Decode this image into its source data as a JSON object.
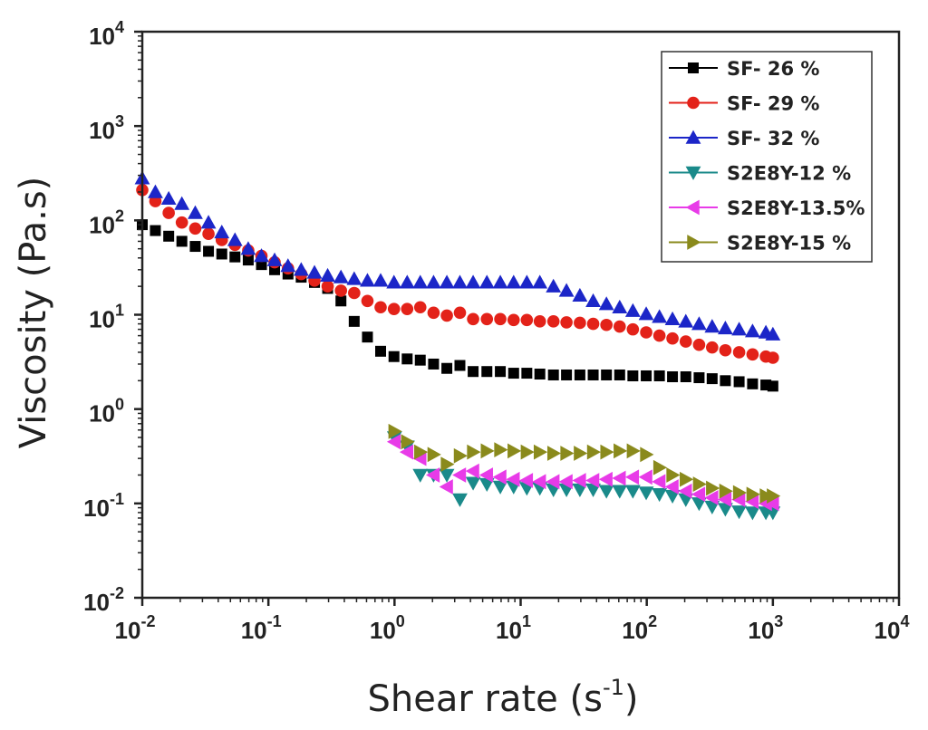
{
  "chart_data": {
    "type": "scatter",
    "title": "",
    "xlabel": "Shear  rate (s",
    "xlabel_sup": "-1",
    "xlabel_end": ")",
    "ylabel": "Viscosity (Pa.s)",
    "xscale": "log",
    "yscale": "log",
    "xlim": [
      0.01,
      10000
    ],
    "ylim": [
      0.01,
      10000
    ],
    "x_ticks": [
      {
        "value": 0.01,
        "base": "10",
        "exp": "-2"
      },
      {
        "value": 0.1,
        "base": "10",
        "exp": "-1"
      },
      {
        "value": 1,
        "base": "10",
        "exp": "0"
      },
      {
        "value": 10,
        "base": "10",
        "exp": "1"
      },
      {
        "value": 100,
        "base": "10",
        "exp": "2"
      },
      {
        "value": 1000,
        "base": "10",
        "exp": "3"
      },
      {
        "value": 10000,
        "base": "10",
        "exp": "4"
      }
    ],
    "y_ticks": [
      {
        "value": 0.01,
        "base": "10",
        "exp": "-2"
      },
      {
        "value": 0.1,
        "base": "10",
        "exp": "-1"
      },
      {
        "value": 1,
        "base": "10",
        "exp": "0"
      },
      {
        "value": 10,
        "base": "10",
        "exp": "1"
      },
      {
        "value": 100,
        "base": "10",
        "exp": "2"
      },
      {
        "value": 1000,
        "base": "10",
        "exp": "3"
      },
      {
        "value": 10000,
        "base": "10",
        "exp": "4"
      }
    ],
    "legend_position": "top-right",
    "series": [
      {
        "name": "SF- 26 %",
        "marker": "square",
        "color": "#000000",
        "points": [
          [
            0.01,
            90
          ],
          [
            0.0127,
            78
          ],
          [
            0.0162,
            68
          ],
          [
            0.0206,
            60
          ],
          [
            0.0263,
            53
          ],
          [
            0.0335,
            47
          ],
          [
            0.0427,
            44
          ],
          [
            0.0543,
            41
          ],
          [
            0.0692,
            38
          ],
          [
            0.0881,
            34
          ],
          [
            0.112,
            30
          ],
          [
            0.143,
            27
          ],
          [
            0.182,
            25
          ],
          [
            0.232,
            22
          ],
          [
            0.295,
            19
          ],
          [
            0.376,
            14
          ],
          [
            0.479,
            8.5
          ],
          [
            0.61,
            5.8
          ],
          [
            0.776,
            4.1
          ],
          [
            0.99,
            3.6
          ],
          [
            1.26,
            3.4
          ],
          [
            1.6,
            3.3
          ],
          [
            2.04,
            3.0
          ],
          [
            2.6,
            2.7
          ],
          [
            3.3,
            2.9
          ],
          [
            4.2,
            2.5
          ],
          [
            5.4,
            2.5
          ],
          [
            6.9,
            2.5
          ],
          [
            8.8,
            2.4
          ],
          [
            11.2,
            2.4
          ],
          [
            14.2,
            2.35
          ],
          [
            18.2,
            2.3
          ],
          [
            23.1,
            2.3
          ],
          [
            29.5,
            2.3
          ],
          [
            37.6,
            2.3
          ],
          [
            47.9,
            2.3
          ],
          [
            61,
            2.3
          ],
          [
            77.6,
            2.25
          ],
          [
            99,
            2.25
          ],
          [
            126,
            2.25
          ],
          [
            160,
            2.2
          ],
          [
            204,
            2.2
          ],
          [
            260,
            2.15
          ],
          [
            330,
            2.1
          ],
          [
            420,
            2.0
          ],
          [
            540,
            1.95
          ],
          [
            690,
            1.85
          ],
          [
            880,
            1.8
          ],
          [
            1000,
            1.75
          ]
        ]
      },
      {
        "name": "SF- 29 %",
        "marker": "circle",
        "color": "#e32219",
        "points": [
          [
            0.01,
            210
          ],
          [
            0.0127,
            160
          ],
          [
            0.0162,
            120
          ],
          [
            0.0206,
            95
          ],
          [
            0.0263,
            82
          ],
          [
            0.0335,
            72
          ],
          [
            0.0427,
            62
          ],
          [
            0.0543,
            55
          ],
          [
            0.0692,
            48
          ],
          [
            0.0881,
            42
          ],
          [
            0.112,
            36
          ],
          [
            0.143,
            31
          ],
          [
            0.182,
            27
          ],
          [
            0.232,
            23
          ],
          [
            0.295,
            20
          ],
          [
            0.376,
            18
          ],
          [
            0.479,
            17
          ],
          [
            0.61,
            14
          ],
          [
            0.776,
            12
          ],
          [
            0.99,
            11.5
          ],
          [
            1.26,
            11.5
          ],
          [
            1.6,
            12
          ],
          [
            2.04,
            10.5
          ],
          [
            2.6,
            9.8
          ],
          [
            3.3,
            10.5
          ],
          [
            4.2,
            9.0
          ],
          [
            5.4,
            9.0
          ],
          [
            6.9,
            9.0
          ],
          [
            8.8,
            8.8
          ],
          [
            11.2,
            8.8
          ],
          [
            14.2,
            8.5
          ],
          [
            18.2,
            8.5
          ],
          [
            23.1,
            8.3
          ],
          [
            29.5,
            8.2
          ],
          [
            37.6,
            8.0
          ],
          [
            47.9,
            7.8
          ],
          [
            61,
            7.5
          ],
          [
            77.6,
            7.0
          ],
          [
            99,
            6.5
          ],
          [
            126,
            6.0
          ],
          [
            160,
            5.6
          ],
          [
            204,
            5.2
          ],
          [
            260,
            4.8
          ],
          [
            330,
            4.5
          ],
          [
            420,
            4.2
          ],
          [
            540,
            4.0
          ],
          [
            690,
            3.8
          ],
          [
            880,
            3.6
          ],
          [
            1000,
            3.5
          ]
        ]
      },
      {
        "name": "SF- 32 %",
        "marker": "triangle-up",
        "color": "#1c26c8",
        "points": [
          [
            0.01,
            280
          ],
          [
            0.0127,
            200
          ],
          [
            0.0162,
            170
          ],
          [
            0.0206,
            150
          ],
          [
            0.0263,
            120
          ],
          [
            0.0335,
            95
          ],
          [
            0.0427,
            75
          ],
          [
            0.0543,
            62
          ],
          [
            0.0692,
            50
          ],
          [
            0.0881,
            42
          ],
          [
            0.112,
            38
          ],
          [
            0.143,
            33
          ],
          [
            0.182,
            30
          ],
          [
            0.232,
            28
          ],
          [
            0.295,
            26
          ],
          [
            0.376,
            25
          ],
          [
            0.479,
            24
          ],
          [
            0.61,
            23
          ],
          [
            0.776,
            23
          ],
          [
            0.99,
            22
          ],
          [
            1.26,
            22
          ],
          [
            1.6,
            22
          ],
          [
            2.04,
            22
          ],
          [
            2.6,
            22
          ],
          [
            3.3,
            22
          ],
          [
            4.2,
            22
          ],
          [
            5.4,
            22
          ],
          [
            6.9,
            22
          ],
          [
            8.8,
            22
          ],
          [
            11.2,
            22
          ],
          [
            14.2,
            22
          ],
          [
            18.2,
            20
          ],
          [
            23.1,
            18
          ],
          [
            29.5,
            16
          ],
          [
            37.6,
            14
          ],
          [
            47.9,
            13
          ],
          [
            61,
            12
          ],
          [
            77.6,
            11
          ],
          [
            99,
            10.2
          ],
          [
            126,
            9.5
          ],
          [
            160,
            9.0
          ],
          [
            204,
            8.5
          ],
          [
            260,
            8.0
          ],
          [
            330,
            7.5
          ],
          [
            420,
            7.2
          ],
          [
            540,
            7.0
          ],
          [
            690,
            6.7
          ],
          [
            880,
            6.5
          ],
          [
            1000,
            6.2
          ]
        ]
      },
      {
        "name": "S2E8Y-12 %",
        "marker": "triangle-down",
        "color": "#1a8a8a",
        "points": [
          [
            1.0,
            0.5
          ],
          [
            1.26,
            0.4
          ],
          [
            1.6,
            0.2
          ],
          [
            2.04,
            0.2
          ],
          [
            2.6,
            0.2
          ],
          [
            3.3,
            0.11
          ],
          [
            4.2,
            0.165
          ],
          [
            5.4,
            0.16
          ],
          [
            6.9,
            0.15
          ],
          [
            8.8,
            0.15
          ],
          [
            11.2,
            0.145
          ],
          [
            14.2,
            0.145
          ],
          [
            18.2,
            0.14
          ],
          [
            23.1,
            0.14
          ],
          [
            29.5,
            0.14
          ],
          [
            37.6,
            0.14
          ],
          [
            47.9,
            0.135
          ],
          [
            61,
            0.135
          ],
          [
            77.6,
            0.135
          ],
          [
            99,
            0.13
          ],
          [
            126,
            0.125
          ],
          [
            160,
            0.12
          ],
          [
            204,
            0.11
          ],
          [
            260,
            0.1
          ],
          [
            330,
            0.092
          ],
          [
            420,
            0.087
          ],
          [
            540,
            0.082
          ],
          [
            690,
            0.08
          ],
          [
            880,
            0.08
          ],
          [
            1000,
            0.08
          ]
        ]
      },
      {
        "name": "S2E8Y-13.5%",
        "marker": "triangle-left",
        "color": "#e83be8",
        "points": [
          [
            1.0,
            0.45
          ],
          [
            1.26,
            0.35
          ],
          [
            1.6,
            0.3
          ],
          [
            2.04,
            0.2
          ],
          [
            2.6,
            0.15
          ],
          [
            3.3,
            0.2
          ],
          [
            4.2,
            0.22
          ],
          [
            5.4,
            0.2
          ],
          [
            6.9,
            0.19
          ],
          [
            8.8,
            0.18
          ],
          [
            11.2,
            0.175
          ],
          [
            14.2,
            0.17
          ],
          [
            18.2,
            0.17
          ],
          [
            23.1,
            0.17
          ],
          [
            29.5,
            0.175
          ],
          [
            37.6,
            0.175
          ],
          [
            47.9,
            0.18
          ],
          [
            61,
            0.185
          ],
          [
            77.6,
            0.19
          ],
          [
            99,
            0.19
          ],
          [
            126,
            0.17
          ],
          [
            160,
            0.15
          ],
          [
            204,
            0.135
          ],
          [
            260,
            0.125
          ],
          [
            330,
            0.115
          ],
          [
            420,
            0.11
          ],
          [
            540,
            0.11
          ],
          [
            690,
            0.105
          ],
          [
            880,
            0.1
          ],
          [
            1000,
            0.1
          ]
        ]
      },
      {
        "name": "S2E8Y-15 %",
        "marker": "triangle-right",
        "color": "#8a8a1c",
        "points": [
          [
            1.0,
            0.58
          ],
          [
            1.26,
            0.45
          ],
          [
            1.6,
            0.35
          ],
          [
            2.04,
            0.33
          ],
          [
            2.6,
            0.26
          ],
          [
            3.3,
            0.32
          ],
          [
            4.2,
            0.35
          ],
          [
            5.4,
            0.36
          ],
          [
            6.9,
            0.37
          ],
          [
            8.8,
            0.36
          ],
          [
            11.2,
            0.35
          ],
          [
            14.2,
            0.35
          ],
          [
            18.2,
            0.34
          ],
          [
            23.1,
            0.34
          ],
          [
            29.5,
            0.34
          ],
          [
            37.6,
            0.35
          ],
          [
            47.9,
            0.35
          ],
          [
            61,
            0.36
          ],
          [
            77.6,
            0.36
          ],
          [
            99,
            0.33
          ],
          [
            126,
            0.24
          ],
          [
            160,
            0.2
          ],
          [
            204,
            0.18
          ],
          [
            260,
            0.16
          ],
          [
            330,
            0.145
          ],
          [
            420,
            0.135
          ],
          [
            540,
            0.13
          ],
          [
            690,
            0.125
          ],
          [
            880,
            0.12
          ],
          [
            1000,
            0.12
          ]
        ]
      }
    ]
  }
}
